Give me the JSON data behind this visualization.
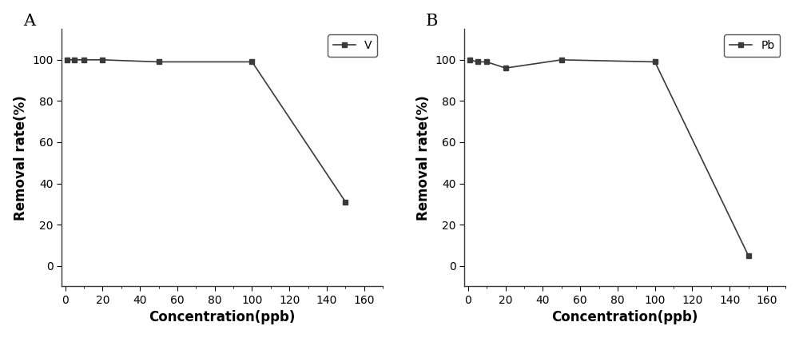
{
  "panel_A": {
    "label": "A",
    "x": [
      1,
      5,
      10,
      20,
      50,
      100,
      150
    ],
    "y": [
      100,
      100,
      100,
      100,
      99,
      99,
      31
    ],
    "legend_label": "V",
    "xlabel": "Concentration(ppb)",
    "ylabel": "Removal rate(%)",
    "xlim": [
      -2,
      170
    ],
    "ylim": [
      -10,
      115
    ],
    "xticks": [
      0,
      20,
      40,
      60,
      80,
      100,
      120,
      140,
      160
    ],
    "yticks": [
      0,
      20,
      40,
      60,
      80,
      100
    ]
  },
  "panel_B": {
    "label": "B",
    "x": [
      1,
      5,
      10,
      20,
      50,
      100,
      150
    ],
    "y": [
      100,
      99,
      99,
      96,
      100,
      99,
      5
    ],
    "legend_label": "Pb",
    "xlabel": "Concentration(ppb)",
    "ylabel": "Removal rate(%)",
    "xlim": [
      -2,
      170
    ],
    "ylim": [
      -10,
      115
    ],
    "xticks": [
      0,
      20,
      40,
      60,
      80,
      100,
      120,
      140,
      160
    ],
    "yticks": [
      0,
      20,
      40,
      60,
      80,
      100
    ]
  },
  "line_color": "#3a3a3a",
  "marker": "s",
  "marker_size": 5,
  "line_width": 1.2,
  "bg_color": "#ffffff",
  "label_fontsize": 12,
  "tick_fontsize": 10,
  "legend_fontsize": 10,
  "panel_label_fontsize": 15
}
